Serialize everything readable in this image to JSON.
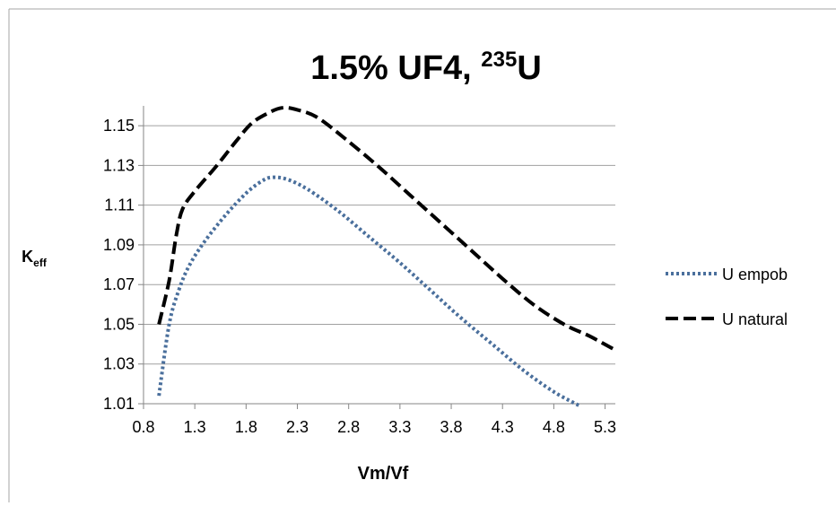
{
  "chart_data": {
    "type": "line",
    "title": {
      "prefix": "1.5% UF4, ",
      "superscript": "235",
      "suffix": "U"
    },
    "xlabel": "Vm/Vf",
    "ylabel": {
      "main": "K",
      "subscript": "eff"
    },
    "xlim": [
      0.8,
      5.4
    ],
    "ylim": [
      1.01,
      1.16
    ],
    "x_ticks": [
      "0.8",
      "1.3",
      "1.8",
      "2.3",
      "2.8",
      "3.3",
      "3.8",
      "4.3",
      "4.8",
      "5.3"
    ],
    "y_ticks": [
      "1.01",
      "1.03",
      "1.05",
      "1.07",
      "1.09",
      "1.11",
      "1.13",
      "1.15"
    ],
    "grid": true,
    "legend_position": "right",
    "series": [
      {
        "name": "U empob",
        "color": "#4a6f9c",
        "style": "dotted",
        "x": [
          0.95,
          1.05,
          1.15,
          1.25,
          1.4,
          1.6,
          1.8,
          1.95,
          2.05,
          2.2,
          2.4,
          2.7,
          3.0,
          3.3,
          3.6,
          3.9,
          4.2,
          4.5,
          4.8,
          5.05
        ],
        "y": [
          1.014,
          1.05,
          1.068,
          1.08,
          1.092,
          1.105,
          1.116,
          1.122,
          1.124,
          1.123,
          1.118,
          1.107,
          1.094,
          1.081,
          1.067,
          1.053,
          1.04,
          1.027,
          1.016,
          1.009
        ]
      },
      {
        "name": "U natural",
        "color": "#000000",
        "style": "dashed",
        "x": [
          0.95,
          1.05,
          1.12,
          1.18,
          1.3,
          1.5,
          1.7,
          1.85,
          2.0,
          2.15,
          2.3,
          2.5,
          2.8,
          3.1,
          3.4,
          3.7,
          4.0,
          4.3,
          4.6,
          4.9,
          5.15,
          5.4
        ],
        "y": [
          1.05,
          1.072,
          1.095,
          1.108,
          1.117,
          1.129,
          1.142,
          1.151,
          1.156,
          1.159,
          1.158,
          1.154,
          1.142,
          1.129,
          1.115,
          1.101,
          1.087,
          1.073,
          1.06,
          1.05,
          1.044,
          1.037
        ]
      }
    ]
  }
}
